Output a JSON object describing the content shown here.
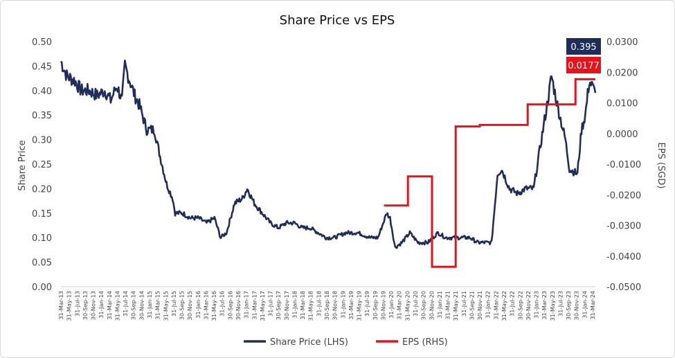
{
  "chart_data": {
    "type": "line",
    "title": "Share Price vs EPS",
    "ylabel_left": "Share Price",
    "ylabel_right": "EPS (SGD)",
    "ylim_left": [
      0,
      0.5
    ],
    "ylim_right": [
      -0.05,
      0.03
    ],
    "yticks_left": [
      "0.00",
      "0.05",
      "0.10",
      "0.15",
      "0.20",
      "0.25",
      "0.30",
      "0.35",
      "0.40",
      "0.45",
      "0.50"
    ],
    "yticks_right": [
      "-0.0500",
      "-0.0400",
      "-0.0300",
      "-0.0200",
      "-0.0100",
      "0.0000",
      "0.0100",
      "0.0200",
      "0.0300"
    ],
    "x_start": "2013-03-31",
    "x_end": "2024-05-31",
    "xticks": [
      "31-Mar-13",
      "31-May-13",
      "31-Jul-13",
      "30-Sep-13",
      "30-Nov-13",
      "31-Jan-14",
      "31-Mar-14",
      "31-May-14",
      "31-Jul-14",
      "30-Sep-14",
      "30-Nov-14",
      "31-Jan-15",
      "31-Mar-15",
      "31-May-15",
      "31-Jul-15",
      "30-Sep-15",
      "30-Nov-15",
      "31-Jan-16",
      "31-Mar-16",
      "31-May-16",
      "31-Jul-16",
      "30-Sep-16",
      "30-Nov-16",
      "31-Jan-17",
      "31-Mar-17",
      "31-May-17",
      "31-Jul-17",
      "30-Sep-17",
      "30-Nov-17",
      "31-Jan-18",
      "31-Mar-18",
      "31-May-18",
      "31-Jul-18",
      "30-Sep-18",
      "30-Nov-18",
      "31-Jan-19",
      "31-Mar-19",
      "31-May-19",
      "31-Jul-19",
      "30-Sep-19",
      "30-Nov-19",
      "31-Jan-20",
      "31-Mar-20",
      "31-May-20",
      "31-Jul-20",
      "30-Sep-20",
      "30-Nov-20",
      "31-Jan-21",
      "31-Mar-21",
      "31-May-21",
      "31-Jul-21",
      "30-Sep-21",
      "30-Nov-21",
      "31-Jan-22",
      "31-Mar-22",
      "31-May-22",
      "31-Jul-22",
      "30-Sep-22",
      "30-Nov-22",
      "31-Jan-23",
      "31-Mar-23",
      "31-May-23",
      "31-Jul-23",
      "30-Sep-23",
      "30-Nov-23",
      "31-Jan-24",
      "31-Mar-24"
    ],
    "grid": false,
    "legend_position": "bottom-center",
    "series": [
      {
        "name": "Share Price (LHS)",
        "axis": "left",
        "color": "#1f2d5c",
        "x": [
          "2013-03-31",
          "2013-05-15",
          "2013-07-15",
          "2013-09-01",
          "2013-11-01",
          "2014-01-01",
          "2014-03-01",
          "2014-04-15",
          "2014-06-01",
          "2014-07-10",
          "2014-08-01",
          "2014-10-15",
          "2014-11-20",
          "2015-01-15",
          "2015-03-15",
          "2015-04-15",
          "2015-06-15",
          "2015-08-01",
          "2015-08-20",
          "2015-10-15",
          "2015-12-15",
          "2016-02-15",
          "2016-04-15",
          "2016-06-15",
          "2016-08-01",
          "2016-09-15",
          "2016-11-15",
          "2017-01-15",
          "2017-02-20",
          "2017-04-15",
          "2017-06-15",
          "2017-08-15",
          "2017-10-15",
          "2017-12-15",
          "2018-02-15",
          "2018-04-15",
          "2018-06-15",
          "2018-08-15",
          "2018-10-15",
          "2018-12-15",
          "2019-03-15",
          "2019-06-15",
          "2019-09-15",
          "2019-11-15",
          "2020-01-20",
          "2020-02-15",
          "2020-03-25",
          "2020-05-15",
          "2020-07-15",
          "2020-09-15",
          "2020-11-30",
          "2021-02-15",
          "2021-04-15",
          "2021-06-15",
          "2021-08-15",
          "2021-10-15",
          "2021-12-15",
          "2022-02-15",
          "2022-03-31",
          "2022-05-15",
          "2022-06-15",
          "2022-08-15",
          "2022-10-15",
          "2022-12-15",
          "2023-02-15",
          "2023-04-15",
          "2023-06-15",
          "2023-07-01",
          "2023-08-15",
          "2023-10-15",
          "2023-11-15",
          "2024-01-15",
          "2024-02-15",
          "2024-03-15",
          "2024-04-15",
          "2024-05-31"
        ],
        "values": [
          0.46,
          0.43,
          0.42,
          0.4,
          0.4,
          0.39,
          0.4,
          0.38,
          0.41,
          0.38,
          0.45,
          0.39,
          0.37,
          0.32,
          0.32,
          0.28,
          0.21,
          0.18,
          0.15,
          0.15,
          0.14,
          0.14,
          0.13,
          0.14,
          0.1,
          0.11,
          0.17,
          0.18,
          0.2,
          0.17,
          0.15,
          0.13,
          0.12,
          0.13,
          0.13,
          0.12,
          0.12,
          0.11,
          0.1,
          0.1,
          0.11,
          0.11,
          0.1,
          0.1,
          0.15,
          0.14,
          0.08,
          0.09,
          0.11,
          0.09,
          0.09,
          0.11,
          0.1,
          0.1,
          0.1,
          0.1,
          0.09,
          0.09,
          0.09,
          0.23,
          0.24,
          0.2,
          0.19,
          0.2,
          0.2,
          0.3,
          0.4,
          0.43,
          0.37,
          0.3,
          0.24,
          0.23,
          0.32,
          0.35,
          0.42,
          0.395
        ]
      },
      {
        "name": "EPS (RHS)",
        "axis": "right",
        "color": "#e8121b",
        "type": "step",
        "x": [
          "2019-12-31",
          "2020-06-30",
          "2020-12-31",
          "2021-06-30",
          "2021-12-31",
          "2022-12-31",
          "2023-06-30",
          "2023-12-31",
          "2024-05-31"
        ],
        "values": [
          -0.0235,
          -0.014,
          -0.0435,
          0.0023,
          0.0028,
          0.0095,
          0.0095,
          0.0177,
          0.0177
        ]
      }
    ],
    "annotations": [
      {
        "label": "0.395",
        "axis": "left",
        "value": 0.395,
        "color": "#1f2d5c"
      },
      {
        "label": "0.0177",
        "axis": "right",
        "value": 0.0177,
        "color": "#e8121b"
      }
    ]
  }
}
